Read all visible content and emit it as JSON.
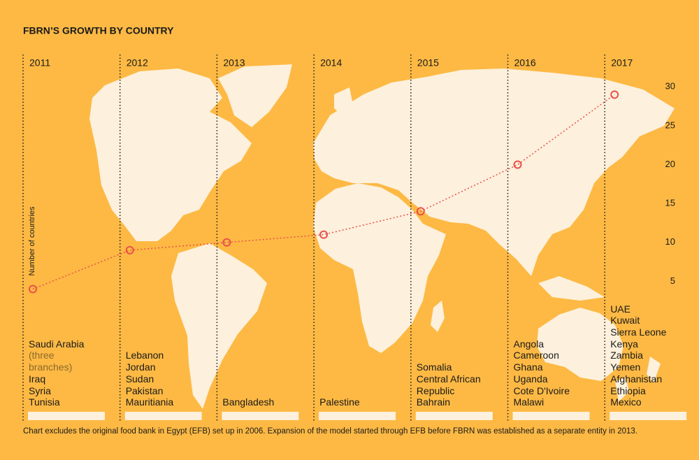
{
  "chart_data": {
    "type": "line",
    "title": "FBRN’S GROWTH BY COUNTRY",
    "y_label": "Number of countries",
    "categories": [
      "2011",
      "2012",
      "2013",
      "2014",
      "2015",
      "2016",
      "2017"
    ],
    "values": [
      4,
      9,
      10,
      11,
      14,
      20,
      29
    ],
    "color": "#e8514a",
    "ylim": [
      0,
      32
    ],
    "yticks": [
      5,
      10,
      15,
      20,
      25,
      30
    ],
    "countries": [
      [
        {
          "name": "Saudi Arabia",
          "note": "(three branches)"
        },
        "Iraq",
        "Syria",
        "Tunisia"
      ],
      [
        "Lebanon",
        "Jordan",
        "Sudan",
        "Pakistan",
        "Mauritiania"
      ],
      [
        "Bangladesh"
      ],
      [
        "Palestine"
      ],
      [
        "Somalia",
        "Central African Republic",
        "Bahrain"
      ],
      [
        "Angola",
        "Cameroon",
        "Ghana",
        "Uganda",
        "Cote D'Ivoire",
        "Malawi"
      ],
      [
        "UAE",
        "Kuwait",
        "Sierra Leone",
        "Kenya",
        "Zambia",
        "Yemen",
        "Afghanistan",
        "Ethiopia",
        "Mexico"
      ]
    ],
    "footnote": "Chart excludes the original food bank in Egypt (EFB) set up in 2006. Expansion of the model started through EFB before FBRN was established as a separate entity in 2013."
  }
}
